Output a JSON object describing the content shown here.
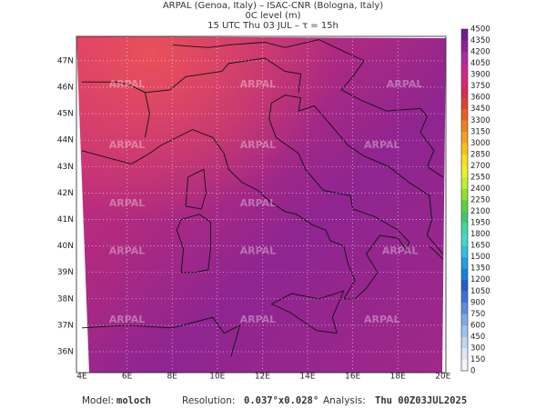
{
  "header": {
    "line1": "ARPAL (Genoa, Italy)  –  ISAC-CNR (Bologna, Italy)",
    "line2": "0C level (m)",
    "line3": "15 UTC Thu 03 JUL  –  τ = 15h"
  },
  "map": {
    "watermark": "ARPAL",
    "lat_labels": [
      "36N",
      "37N",
      "38N",
      "39N",
      "40N",
      "41N",
      "42N",
      "43N",
      "44N",
      "45N",
      "46N",
      "47N"
    ],
    "lon_labels": [
      "4E",
      "6E",
      "8E",
      "10E",
      "12E",
      "14E",
      "16E",
      "18E",
      "20E"
    ]
  },
  "colorbar": {
    "labels": [
      0,
      150,
      300,
      450,
      600,
      750,
      900,
      1050,
      1200,
      1350,
      1500,
      1650,
      1800,
      1950,
      2100,
      2250,
      2400,
      2550,
      2700,
      2850,
      3000,
      3150,
      3300,
      3450,
      3600,
      3750,
      3900,
      4050,
      4200,
      4350,
      4500
    ],
    "colors": [
      "#f4f4f4",
      "#dce6f5",
      "#c0d4f0",
      "#a0c0ec",
      "#80aae6",
      "#5a8ee0",
      "#3a74d8",
      "#2060d0",
      "#1a80d8",
      "#20a0e0",
      "#30c0e0",
      "#40d8d0",
      "#40d8a0",
      "#40c870",
      "#60d040",
      "#90e030",
      "#c0f030",
      "#e8f030",
      "#f8e020",
      "#f8c020",
      "#f8a020",
      "#f08020",
      "#e86020",
      "#e04030",
      "#e02850",
      "#d82878",
      "#c82890",
      "#b028a0",
      "#9020a0",
      "#701c90"
    ]
  },
  "footer": {
    "model_label": "Model:",
    "model": "moloch",
    "resolution_label": "Resolution:",
    "resolution": "0.037°x0.028°",
    "analysis_label": "Analysis:",
    "analysis": "Thu 00Z03JUL2025"
  }
}
